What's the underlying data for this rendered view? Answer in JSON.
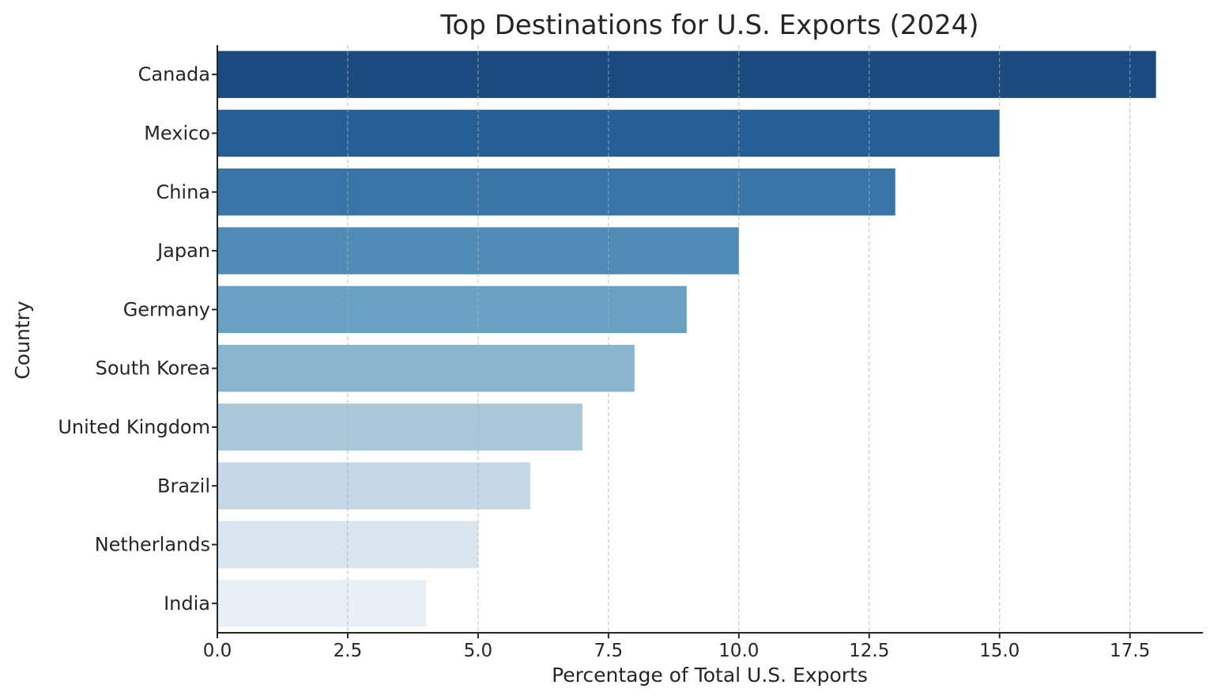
{
  "chart_data": {
    "type": "bar",
    "orientation": "horizontal",
    "title": "Top Destinations for U.S. Exports (2024)",
    "xlabel": "Percentage of Total U.S. Exports",
    "ylabel": "Country",
    "categories": [
      "Canada",
      "Mexico",
      "China",
      "Japan",
      "Germany",
      "South Korea",
      "United Kingdom",
      "Brazil",
      "Netherlands",
      "India"
    ],
    "values": [
      18,
      15,
      13,
      10,
      9,
      8,
      7,
      6,
      5,
      4
    ],
    "colors": [
      "#1b4a7f",
      "#255f95",
      "#3874a6",
      "#508bb5",
      "#6aa0c4",
      "#8bb5ce",
      "#a9c8da",
      "#c5d8e7",
      "#d9e5ef",
      "#e9eff7"
    ],
    "xlim": [
      0,
      18.9
    ],
    "xticks": [
      "0.0",
      "2.5",
      "5.0",
      "7.5",
      "10.0",
      "12.5",
      "15.0",
      "17.5"
    ],
    "grid": "x-dashed",
    "legend": "none"
  }
}
